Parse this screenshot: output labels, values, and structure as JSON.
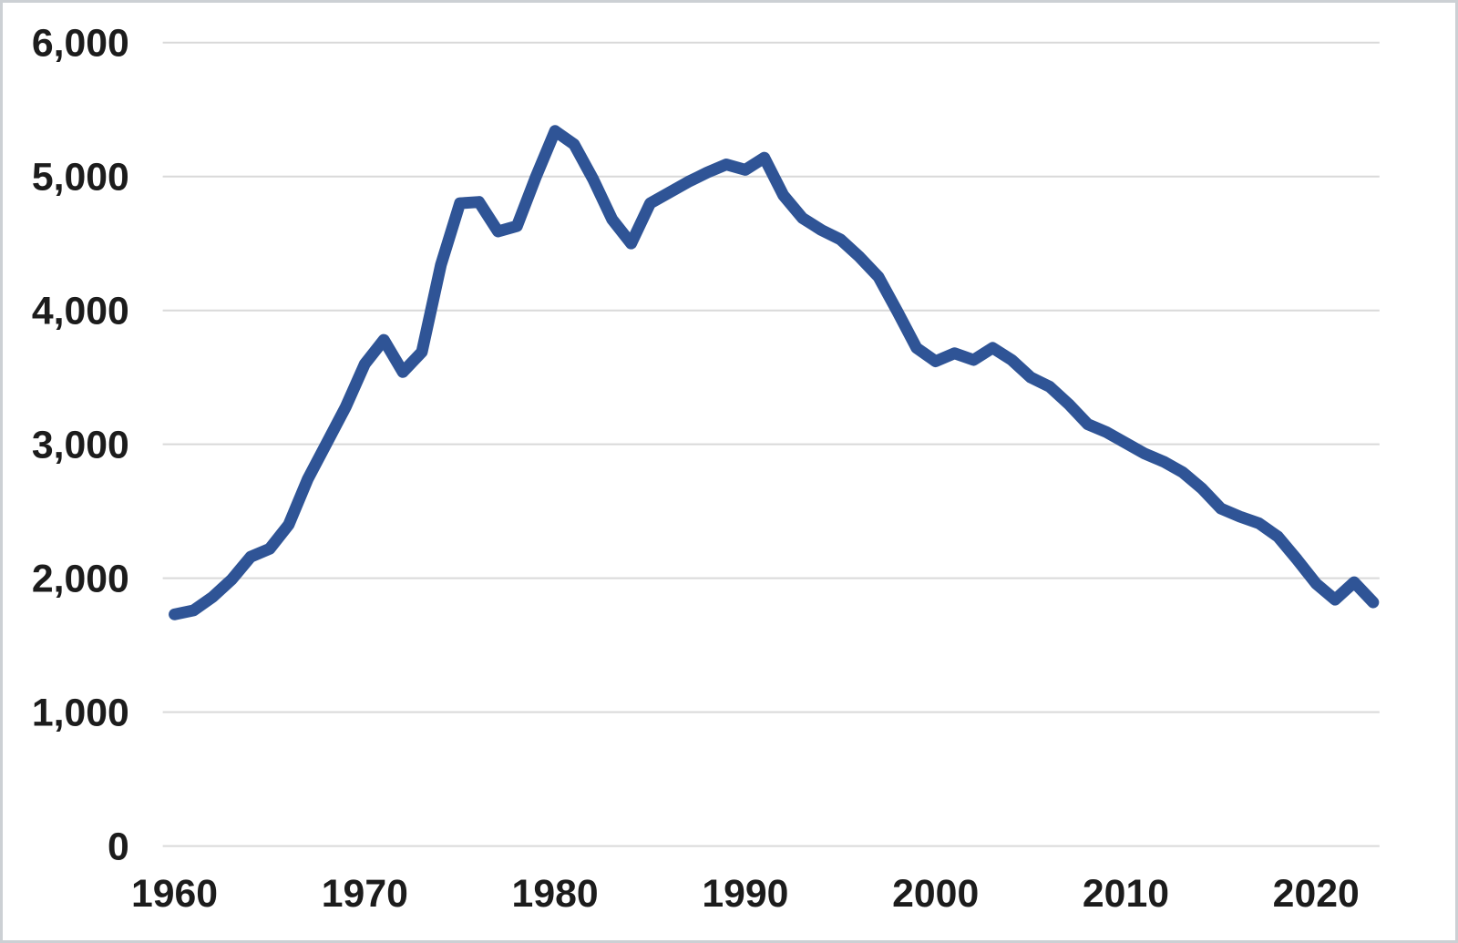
{
  "chart_data": {
    "type": "line",
    "title": "",
    "xlabel": "",
    "ylabel": "",
    "x": [
      1960,
      1961,
      1962,
      1963,
      1964,
      1965,
      1966,
      1967,
      1968,
      1969,
      1970,
      1971,
      1972,
      1973,
      1974,
      1975,
      1976,
      1977,
      1978,
      1979,
      1980,
      1981,
      1982,
      1983,
      1984,
      1985,
      1986,
      1987,
      1988,
      1989,
      1990,
      1991,
      1992,
      1993,
      1994,
      1995,
      1996,
      1997,
      1998,
      1999,
      2000,
      2001,
      2002,
      2003,
      2004,
      2005,
      2006,
      2007,
      2008,
      2009,
      2010,
      2011,
      2012,
      2013,
      2014,
      2015,
      2016,
      2017,
      2018,
      2019,
      2020,
      2021,
      2022,
      2023
    ],
    "values": [
      1730,
      1760,
      1860,
      1990,
      2160,
      2220,
      2400,
      2740,
      3010,
      3280,
      3600,
      3780,
      3540,
      3690,
      4340,
      4800,
      4810,
      4590,
      4630,
      5000,
      5340,
      5240,
      4980,
      4680,
      4500,
      4800,
      4880,
      4960,
      5030,
      5090,
      5050,
      5140,
      4860,
      4690,
      4600,
      4530,
      4400,
      4250,
      3990,
      3720,
      3620,
      3680,
      3630,
      3720,
      3630,
      3500,
      3430,
      3300,
      3150,
      3090,
      3010,
      2930,
      2870,
      2790,
      2670,
      2520,
      2460,
      2410,
      2310,
      2140,
      1960,
      1840,
      1970,
      1820
    ],
    "xlim": [
      1960,
      2023
    ],
    "ylim": [
      0,
      6000
    ],
    "yticks": [
      0,
      1000,
      2000,
      3000,
      4000,
      5000,
      6000
    ],
    "ytick_labels": [
      "0",
      "1,000",
      "2,000",
      "3,000",
      "4,000",
      "5,000",
      "6,000"
    ],
    "xticks": [
      1960,
      1970,
      1980,
      1990,
      2000,
      2010,
      2020
    ],
    "xtick_labels": [
      "1960",
      "1970",
      "1980",
      "1990",
      "2000",
      "2010",
      "2020"
    ],
    "grid": true,
    "legend": false,
    "series_count": 1,
    "colors": {
      "line": "#2f5496",
      "gridline": "#d9d9d9",
      "tick_text": "#1c1c1c",
      "background": "#ffffff",
      "frame_border": "#ccd0d4"
    }
  }
}
